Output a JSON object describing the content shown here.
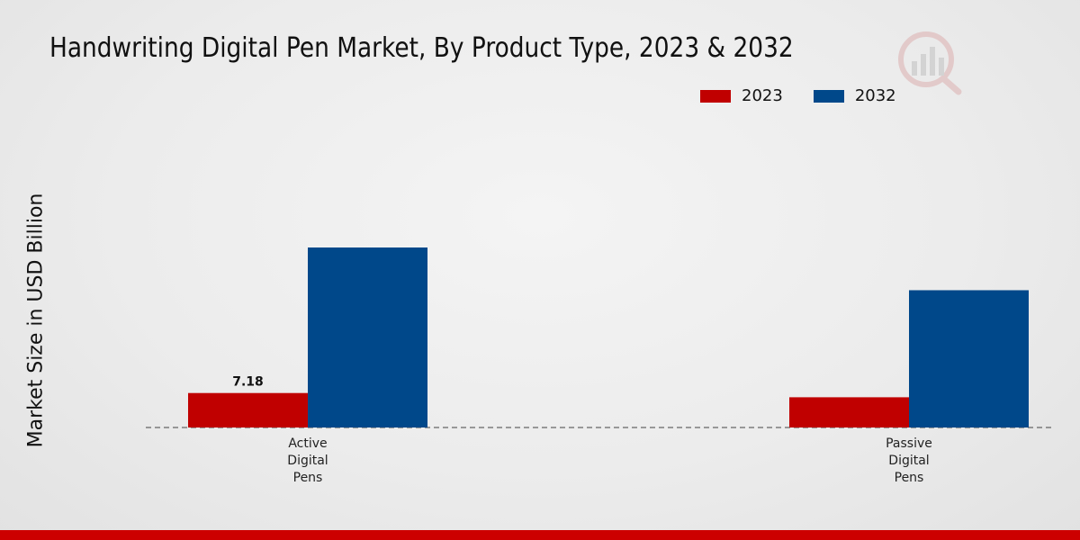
{
  "chart_data": {
    "type": "bar",
    "title": "Handwriting Digital Pen Market, By Product Type, 2023 & 2032",
    "xlabel": "",
    "ylabel": "Market Size in USD Billion",
    "categories": [
      "Active Digital Pens",
      "Passive Digital Pens"
    ],
    "category_lines": [
      [
        "Active",
        "Digital",
        "Pens"
      ],
      [
        "Passive",
        "Digital",
        "Pens"
      ]
    ],
    "series": [
      {
        "name": "2023",
        "color": "#c00000",
        "values": [
          7.18,
          6.3
        ]
      },
      {
        "name": "2032",
        "color": "#00488a",
        "values": [
          37.5,
          28.6
        ]
      }
    ],
    "data_labels": [
      {
        "series": 0,
        "index": 0,
        "text": "7.18"
      }
    ],
    "ylim": [
      0,
      60
    ],
    "grid": false,
    "legend_position": "top-right"
  }
}
